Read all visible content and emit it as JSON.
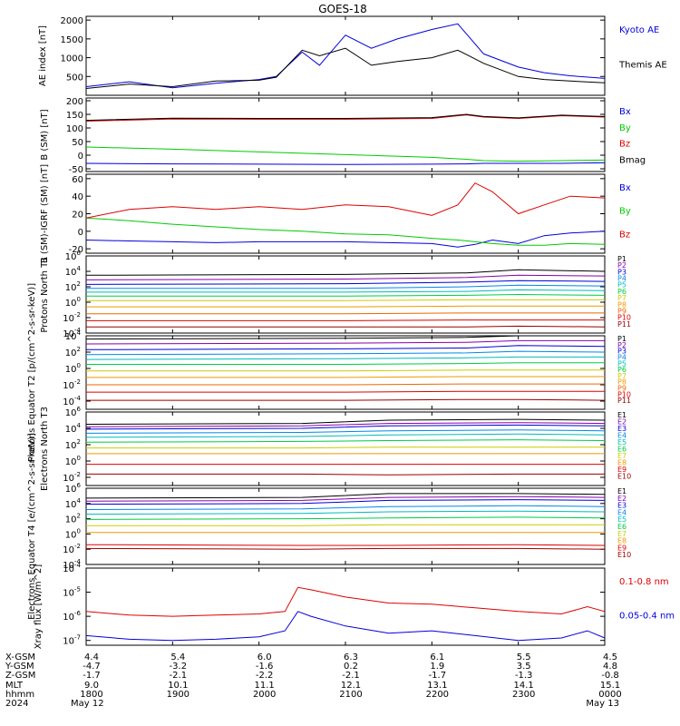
{
  "title": "GOES-18",
  "colors": {
    "black": "#000000",
    "blue": "#0000dd",
    "green": "#00cc00",
    "red": "#dd0000"
  },
  "xaxis": {
    "row_labels": [
      "X-GSM",
      "Y-GSM",
      "Z-GSM",
      "MLT",
      "hhmm",
      "2024"
    ],
    "columns": [
      {
        "x": "4.4",
        "y": "-4.7",
        "z": "-1.7",
        "mlt": "9.0",
        "hhmm": "1800",
        "date": "May 12"
      },
      {
        "x": "5.4",
        "y": "-3.2",
        "z": "-2.1",
        "mlt": "10.1",
        "hhmm": "1900",
        "date": ""
      },
      {
        "x": "6.0",
        "y": "-1.6",
        "z": "-2.2",
        "mlt": "11.1",
        "hhmm": "2000",
        "date": ""
      },
      {
        "x": "6.3",
        "y": "0.2",
        "z": "-2.1",
        "mlt": "12.1",
        "hhmm": "2100",
        "date": ""
      },
      {
        "x": "6.1",
        "y": "1.9",
        "z": "-1.7",
        "mlt": "13.1",
        "hhmm": "2200",
        "date": ""
      },
      {
        "x": "5.5",
        "y": "3.5",
        "z": "-1.3",
        "mlt": "14.1",
        "hhmm": "2300",
        "date": ""
      },
      {
        "x": "4.5",
        "y": "4.8",
        "z": "-0.8",
        "mlt": "15.1",
        "hhmm": "0000",
        "date": "May 13"
      }
    ]
  },
  "chart_data": [
    {
      "type": "line",
      "ylabel": "AE index [nT]",
      "ylim": [
        0,
        2100
      ],
      "yticks": [
        "2000",
        "1500",
        "1000",
        "500"
      ],
      "ytick_values": [
        2000,
        1500,
        1000,
        500
      ],
      "x_hours": [
        0,
        0.5,
        1,
        1.5,
        2,
        2.2,
        2.5,
        2.7,
        3,
        3.3,
        3.6,
        4,
        4.3,
        4.6,
        5,
        5.3,
        5.6,
        6
      ],
      "series": [
        {
          "name": "Kyoto AE",
          "color": "#0000dd",
          "values": [
            230,
            360,
            200,
            320,
            420,
            500,
            1150,
            800,
            1600,
            1250,
            1500,
            1750,
            1900,
            1100,
            750,
            600,
            520,
            450
          ]
        },
        {
          "name": "Themis AE",
          "color": "#000000",
          "values": [
            180,
            300,
            230,
            380,
            400,
            480,
            1200,
            1050,
            1250,
            800,
            900,
            1000,
            1200,
            850,
            500,
            420,
            380,
            330
          ]
        }
      ]
    },
    {
      "type": "line",
      "ylabel": "B (SM) [nT]",
      "ylim": [
        -60,
        210
      ],
      "yticks": [
        "200",
        "150",
        "100",
        "50",
        "0",
        "-50"
      ],
      "ytick_values": [
        200,
        150,
        100,
        50,
        0,
        -50
      ],
      "x_hours": [
        0,
        1,
        2,
        3,
        4,
        4.4,
        4.6,
        5,
        5.5,
        6
      ],
      "series": [
        {
          "name": "Bx",
          "color": "#0000dd",
          "values": [
            -30,
            -32,
            -33,
            -34,
            -33,
            -32,
            -30,
            -30,
            -30,
            -28
          ]
        },
        {
          "name": "By",
          "color": "#00cc00",
          "values": [
            30,
            22,
            12,
            2,
            -8,
            -15,
            -20,
            -22,
            -20,
            -18
          ]
        },
        {
          "name": "Bz",
          "color": "#dd0000",
          "values": [
            125,
            133,
            132,
            132,
            135,
            148,
            140,
            135,
            145,
            140
          ]
        },
        {
          "name": "Bmag",
          "color": "#000000",
          "values": [
            128,
            136,
            135,
            135,
            138,
            150,
            142,
            137,
            147,
            142
          ]
        }
      ]
    },
    {
      "type": "line",
      "ylabel": "B (SM)-IGRF (SM) [nT]",
      "ylim": [
        -25,
        65
      ],
      "yticks": [
        "60",
        "40",
        "20",
        "0",
        "-20"
      ],
      "ytick_values": [
        60,
        40,
        20,
        0,
        -20
      ],
      "x_hours": [
        0,
        0.5,
        1,
        1.5,
        2,
        2.5,
        3,
        3.5,
        4,
        4.3,
        4.5,
        4.7,
        5,
        5.3,
        5.6,
        6
      ],
      "series": [
        {
          "name": "Bx",
          "color": "#0000dd",
          "values": [
            -10,
            -11,
            -12,
            -13,
            -12,
            -12,
            -12,
            -13,
            -14,
            -18,
            -15,
            -10,
            -14,
            -5,
            -2,
            0
          ]
        },
        {
          "name": "By",
          "color": "#00cc00",
          "values": [
            15,
            12,
            8,
            5,
            2,
            0,
            -3,
            -4,
            -8,
            -10,
            -12,
            -14,
            -16,
            -16,
            -14,
            -15
          ]
        },
        {
          "name": "Bz",
          "color": "#dd0000",
          "values": [
            15,
            25,
            28,
            25,
            28,
            25,
            30,
            28,
            18,
            30,
            55,
            45,
            20,
            30,
            40,
            38
          ]
        }
      ]
    },
    {
      "type": "line",
      "ylabel": "Protons North T1",
      "yscale": "log",
      "ylim": [
        -4,
        6
      ],
      "yticks": [
        "10^6",
        "10^4",
        "10^2",
        "10^0",
        "10^-2",
        "10^-4"
      ],
      "ytick_values": [
        6,
        4,
        2,
        0,
        -2,
        -4
      ],
      "x_hours": [
        0,
        3,
        4.4,
        5,
        6
      ],
      "series": [
        {
          "name": "P1",
          "color": "#000000",
          "values": [
            3.5,
            3.6,
            3.8,
            4.2,
            4.0
          ]
        },
        {
          "name": "P2",
          "color": "#8800aa",
          "values": [
            2.9,
            3.0,
            3.2,
            3.5,
            3.4
          ]
        },
        {
          "name": "P3",
          "color": "#0000dd",
          "values": [
            2.3,
            2.4,
            2.6,
            2.8,
            2.7
          ]
        },
        {
          "name": "P4",
          "color": "#0088ee",
          "values": [
            1.8,
            1.8,
            2.0,
            2.2,
            2.1
          ]
        },
        {
          "name": "P5",
          "color": "#00bbbb",
          "values": [
            1.3,
            1.3,
            1.4,
            1.6,
            1.5
          ]
        },
        {
          "name": "P6",
          "color": "#00cc44",
          "values": [
            0.8,
            0.8,
            0.9,
            1.0,
            0.9
          ]
        },
        {
          "name": "P7",
          "color": "#cccc00",
          "values": [
            0.2,
            0.2,
            0.3,
            0.3,
            0.3
          ]
        },
        {
          "name": "P8",
          "color": "#ee9900",
          "values": [
            -0.6,
            -0.6,
            -0.5,
            -0.5,
            -0.5
          ]
        },
        {
          "name": "P9",
          "color": "#ee6600",
          "values": [
            -1.5,
            -1.5,
            -1.4,
            -1.4,
            -1.4
          ]
        },
        {
          "name": "P10",
          "color": "#dd0000",
          "values": [
            -2.4,
            -2.4,
            -2.3,
            -2.3,
            -2.3
          ]
        },
        {
          "name": "P11",
          "color": "#990000",
          "values": [
            -3.2,
            -3.2,
            -3.2,
            -3.1,
            -3.2
          ]
        }
      ]
    },
    {
      "type": "line",
      "ylabel": "Protons Equator T2 [p/(cm^2-s-sr-keV)]",
      "yscale": "log",
      "ylim": [
        -5,
        4
      ],
      "yticks": [
        "10^4",
        "10^2",
        "10^0",
        "10^-2",
        "10^-4"
      ],
      "ytick_values": [
        4,
        2,
        0,
        -2,
        -4
      ],
      "x_hours": [
        0,
        3,
        4.4,
        5,
        6
      ],
      "series": [
        {
          "name": "P1",
          "color": "#000000",
          "values": [
            3.6,
            3.7,
            3.8,
            4.0,
            4.0
          ]
        },
        {
          "name": "P2",
          "color": "#8800aa",
          "values": [
            3.0,
            3.1,
            3.2,
            3.4,
            3.4
          ]
        },
        {
          "name": "P3",
          "color": "#0000dd",
          "values": [
            2.3,
            2.4,
            2.5,
            2.8,
            2.7
          ]
        },
        {
          "name": "P4",
          "color": "#0088ee",
          "values": [
            1.7,
            1.8,
            1.9,
            2.1,
            2.0
          ]
        },
        {
          "name": "P5",
          "color": "#00bbbb",
          "values": [
            1.1,
            1.2,
            1.3,
            1.4,
            1.4
          ]
        },
        {
          "name": "P6",
          "color": "#00cc44",
          "values": [
            0.5,
            0.5,
            0.6,
            0.7,
            0.7
          ]
        },
        {
          "name": "P7",
          "color": "#cccc00",
          "values": [
            -0.3,
            -0.3,
            -0.2,
            -0.2,
            -0.2
          ]
        },
        {
          "name": "P8",
          "color": "#ee9900",
          "values": [
            -1.1,
            -1.1,
            -1.0,
            -1.0,
            -1.0
          ]
        },
        {
          "name": "P9",
          "color": "#ee6600",
          "values": [
            -2.0,
            -2.0,
            -1.9,
            -1.9,
            -1.9
          ]
        },
        {
          "name": "P10",
          "color": "#dd0000",
          "values": [
            -2.9,
            -2.9,
            -2.8,
            -2.8,
            -2.8
          ]
        },
        {
          "name": "P11",
          "color": "#990000",
          "values": [
            -3.9,
            -3.9,
            -3.8,
            -3.8,
            -3.9
          ]
        }
      ]
    },
    {
      "type": "line",
      "ylabel": "Electrons North T3",
      "yscale": "log",
      "ylim": [
        -3,
        6
      ],
      "yticks": [
        "10^6",
        "10^4",
        "10^2",
        "10^0",
        "10^-2"
      ],
      "ytick_values": [
        6,
        4,
        2,
        0,
        -2
      ],
      "x_hours": [
        0,
        2.5,
        3.5,
        5,
        6
      ],
      "series": [
        {
          "name": "E1",
          "color": "#000000",
          "values": [
            4.5,
            4.6,
            5.0,
            5.1,
            5.0
          ]
        },
        {
          "name": "E2",
          "color": "#8800aa",
          "values": [
            4.2,
            4.3,
            4.6,
            4.7,
            4.6
          ]
        },
        {
          "name": "E3",
          "color": "#0000dd",
          "values": [
            3.9,
            4.0,
            4.3,
            4.4,
            4.3
          ]
        },
        {
          "name": "E4",
          "color": "#0088ee",
          "values": [
            3.4,
            3.5,
            3.7,
            3.8,
            3.7
          ]
        },
        {
          "name": "E5",
          "color": "#00bbbb",
          "values": [
            2.9,
            3.0,
            3.2,
            3.3,
            3.2
          ]
        },
        {
          "name": "E6",
          "color": "#00cc44",
          "values": [
            2.3,
            2.4,
            2.5,
            2.6,
            2.5
          ]
        },
        {
          "name": "E7",
          "color": "#cccc00",
          "values": [
            1.6,
            1.6,
            1.7,
            1.7,
            1.7
          ]
        },
        {
          "name": "E8",
          "color": "#ee9900",
          "values": [
            0.9,
            0.9,
            0.9,
            0.9,
            0.9
          ]
        },
        {
          "name": "E9",
          "color": "#dd0000",
          "values": [
            -0.4,
            -0.4,
            -0.4,
            -0.4,
            -0.4
          ]
        },
        {
          "name": "E10",
          "color": "#990000",
          "values": [
            -1.6,
            -1.6,
            -1.7,
            -1.6,
            -1.6
          ]
        }
      ]
    },
    {
      "type": "line",
      "ylabel": "Electrons Equator T4 [e/(cm^2-s-sr-keV)]",
      "yscale": "log",
      "ylim": [
        -4,
        6
      ],
      "yticks": [
        "10^6",
        "10^4",
        "10^2",
        "10^0",
        "10^-2",
        "10^-4"
      ],
      "ytick_values": [
        6,
        4,
        2,
        0,
        -2,
        -4
      ],
      "x_hours": [
        0,
        2.5,
        3.5,
        5,
        6
      ],
      "series": [
        {
          "name": "E1",
          "color": "#000000",
          "values": [
            4.7,
            4.8,
            5.3,
            5.3,
            5.2
          ]
        },
        {
          "name": "E2",
          "color": "#8800aa",
          "values": [
            4.3,
            4.4,
            4.8,
            4.9,
            4.8
          ]
        },
        {
          "name": "E3",
          "color": "#0000dd",
          "values": [
            3.9,
            4.0,
            4.4,
            4.5,
            4.4
          ]
        },
        {
          "name": "E4",
          "color": "#0088ee",
          "values": [
            3.2,
            3.3,
            3.6,
            3.7,
            3.6
          ]
        },
        {
          "name": "E5",
          "color": "#00bbbb",
          "values": [
            2.6,
            2.7,
            2.9,
            3.0,
            2.9
          ]
        },
        {
          "name": "E6",
          "color": "#00cc44",
          "values": [
            1.9,
            2.0,
            2.1,
            2.2,
            2.1
          ]
        },
        {
          "name": "E7",
          "color": "#cccc00",
          "values": [
            1.1,
            1.1,
            1.2,
            1.2,
            1.2
          ]
        },
        {
          "name": "E8",
          "color": "#ee9900",
          "values": [
            0.2,
            0.2,
            0.2,
            0.2,
            0.2
          ]
        },
        {
          "name": "E9",
          "color": "#dd0000",
          "values": [
            -1.4,
            -1.5,
            -1.5,
            -1.4,
            -1.5
          ]
        },
        {
          "name": "E10",
          "color": "#990000",
          "values": [
            -1.9,
            -2.0,
            -1.9,
            -1.9,
            -2.0
          ]
        }
      ]
    },
    {
      "type": "line",
      "ylabel": "Xray flux [W/m^2]",
      "yscale": "log",
      "ylim": [
        -7.2,
        -4
      ],
      "yticks": [
        "10^-4",
        "10^-5",
        "10^-6",
        "10^-7"
      ],
      "ytick_values": [
        -4,
        -5,
        -6,
        -7
      ],
      "x_hours": [
        0,
        0.5,
        1,
        1.5,
        2,
        2.3,
        2.45,
        2.6,
        3,
        3.5,
        4,
        4.5,
        5,
        5.5,
        5.8,
        6
      ],
      "series": [
        {
          "name": "0.1-0.8 nm",
          "color": "#dd0000",
          "values": [
            -5.8,
            -5.95,
            -6.0,
            -5.95,
            -5.9,
            -5.8,
            -4.8,
            -4.9,
            -5.2,
            -5.45,
            -5.5,
            -5.65,
            -5.8,
            -5.9,
            -5.6,
            -5.8
          ]
        },
        {
          "name": "0.05-0.4 nm",
          "color": "#0000dd",
          "values": [
            -6.8,
            -6.95,
            -7.0,
            -6.95,
            -6.85,
            -6.6,
            -5.8,
            -6.0,
            -6.4,
            -6.7,
            -6.6,
            -6.8,
            -7.0,
            -6.9,
            -6.6,
            -6.9
          ]
        }
      ]
    }
  ]
}
